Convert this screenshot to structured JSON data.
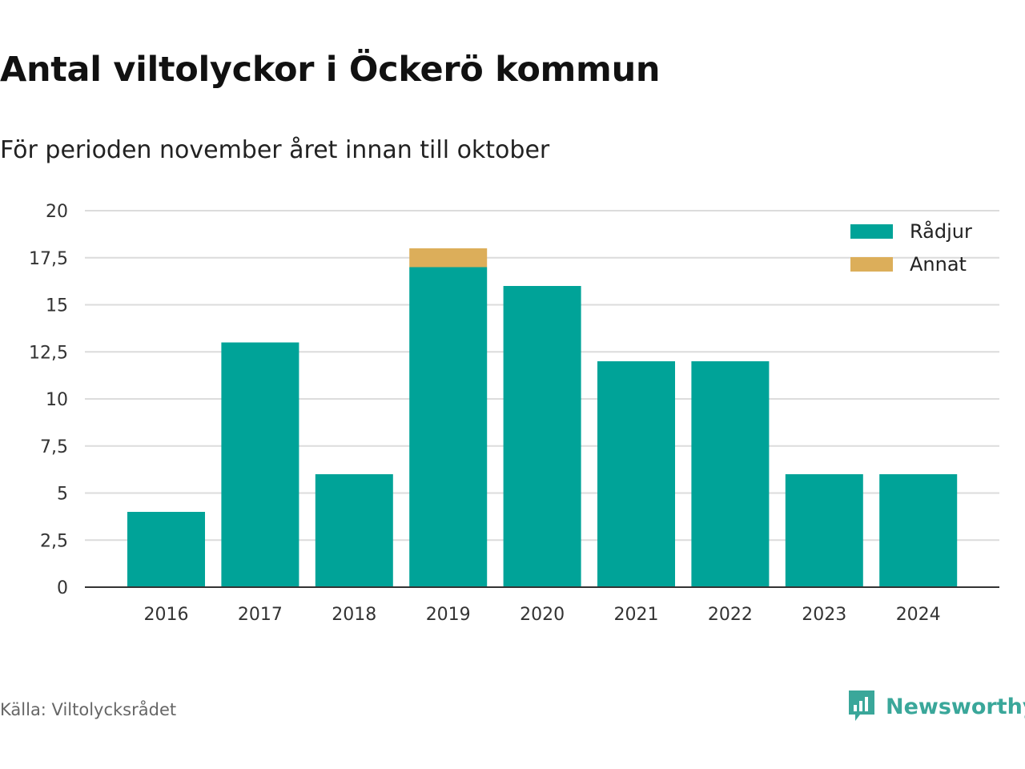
{
  "header": {
    "title": "Antal viltolyckor i Öckerö kommun",
    "subtitle": "För perioden november året innan till oktober"
  },
  "footer": {
    "source": "Källa: Viltolycksrådet",
    "brand": "Newsworthy",
    "brand_icon": "bar-chart-speech-bubble-icon",
    "brand_color": "#3aa79a"
  },
  "chart_data": {
    "type": "bar",
    "stacked": true,
    "categories": [
      "2016",
      "2017",
      "2018",
      "2019",
      "2020",
      "2021",
      "2022",
      "2023",
      "2024"
    ],
    "series": [
      {
        "name": "Rådjur",
        "color": "#00a398",
        "values": [
          4,
          13,
          6,
          17,
          16,
          12,
          12,
          6,
          6
        ]
      },
      {
        "name": "Annat",
        "color": "#dcae5a",
        "values": [
          0,
          0,
          0,
          1,
          0,
          0,
          0,
          0,
          0
        ]
      }
    ],
    "ylim": [
      0,
      20
    ],
    "yticks": [
      0,
      2.5,
      5,
      7.5,
      10,
      12.5,
      15,
      17.5,
      20
    ],
    "ytick_labels": [
      "0",
      "2,5",
      "5",
      "7,5",
      "10",
      "12,5",
      "15",
      "17,5",
      "20"
    ],
    "xlabel": "",
    "ylabel": "",
    "grid": true,
    "legend_position": "top-right"
  }
}
